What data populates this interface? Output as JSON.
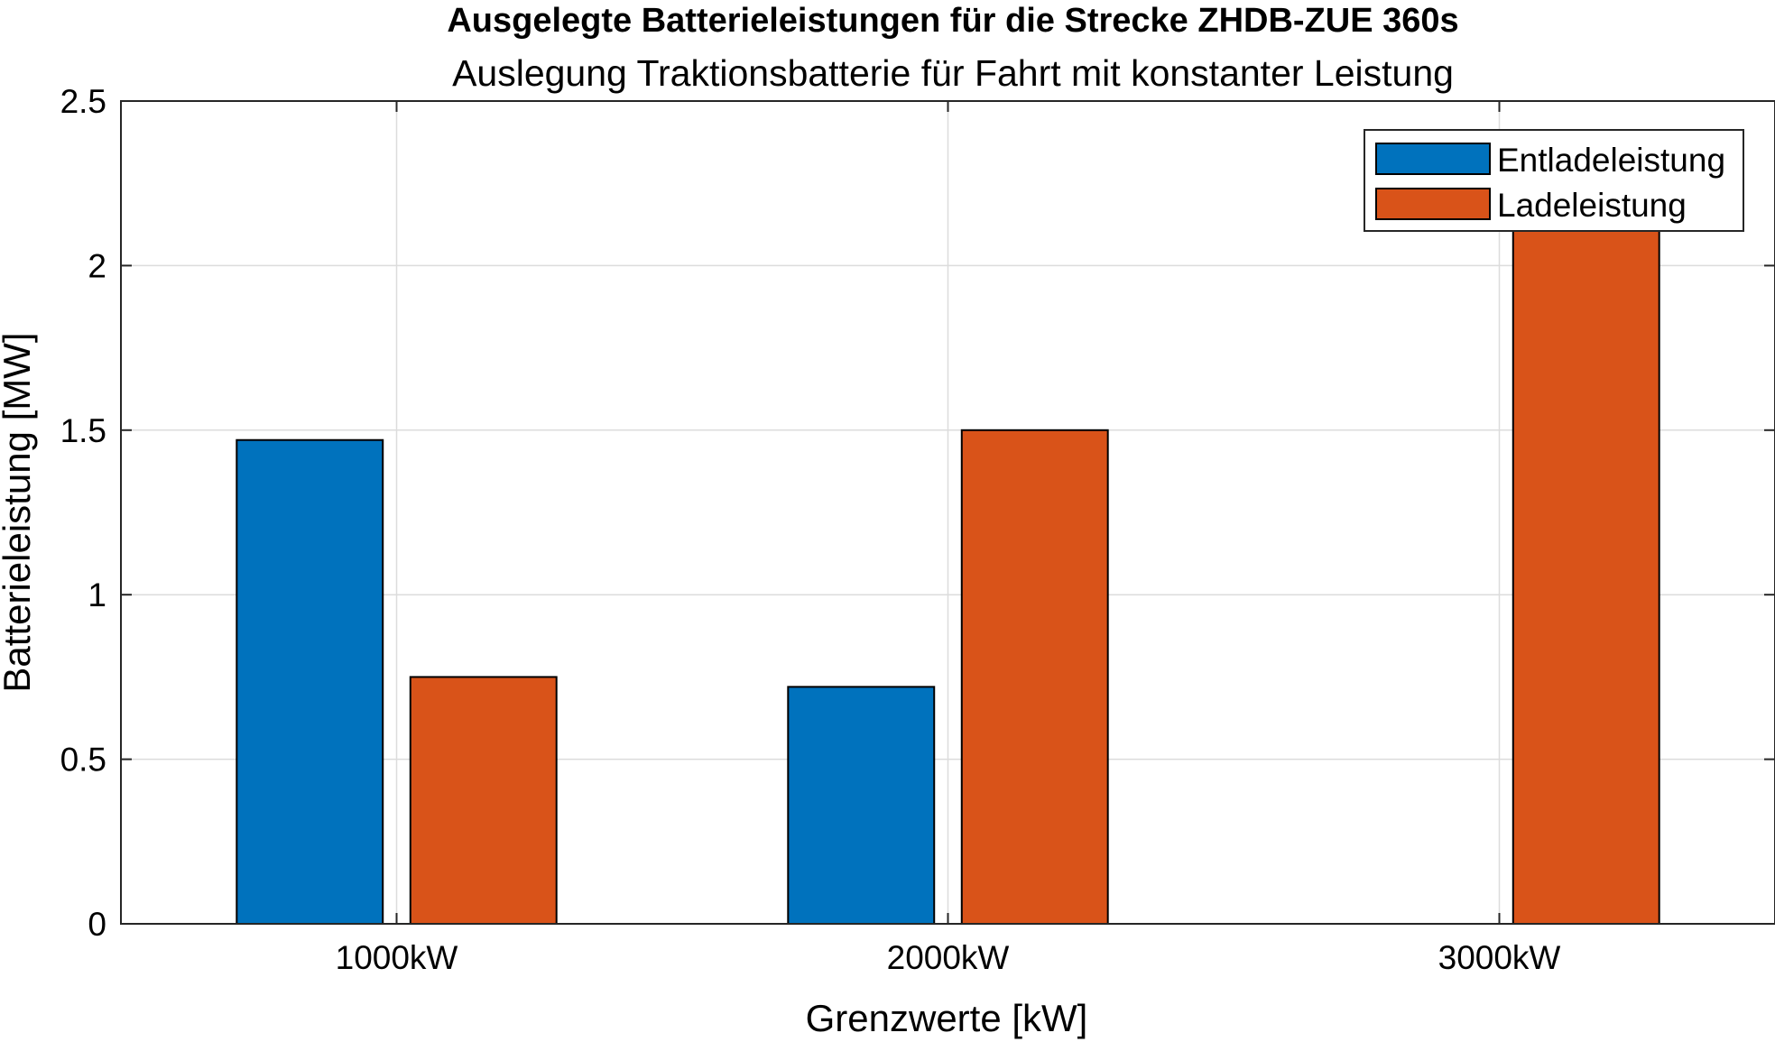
{
  "chart_data": {
    "type": "bar",
    "title": "Ausgelegte Batterieleistungen für die Strecke ZHDB-ZUE 360s",
    "subtitle": "Auslegung Traktionsbatterie für Fahrt mit konstanter Leistung",
    "xlabel": "Grenzwerte [kW]",
    "ylabel": "Batterieleistung [MW]",
    "categories": [
      "1000kW",
      "2000kW",
      "3000kW"
    ],
    "series": [
      {
        "name": "Entladeleistung",
        "color": "#0072BD",
        "values": [
          1.47,
          0.72,
          0.0
        ]
      },
      {
        "name": "Ladeleistung",
        "color": "#D95319",
        "values": [
          0.75,
          1.5,
          2.11
        ]
      }
    ],
    "ylim": [
      0,
      2.5
    ],
    "yticks": [
      "0",
      "0.5",
      "1",
      "1.5",
      "2",
      "2.5"
    ],
    "yticks_values": [
      0,
      0.5,
      1,
      1.5,
      2,
      2.5
    ],
    "grid": true,
    "legend_position": "top-right"
  }
}
